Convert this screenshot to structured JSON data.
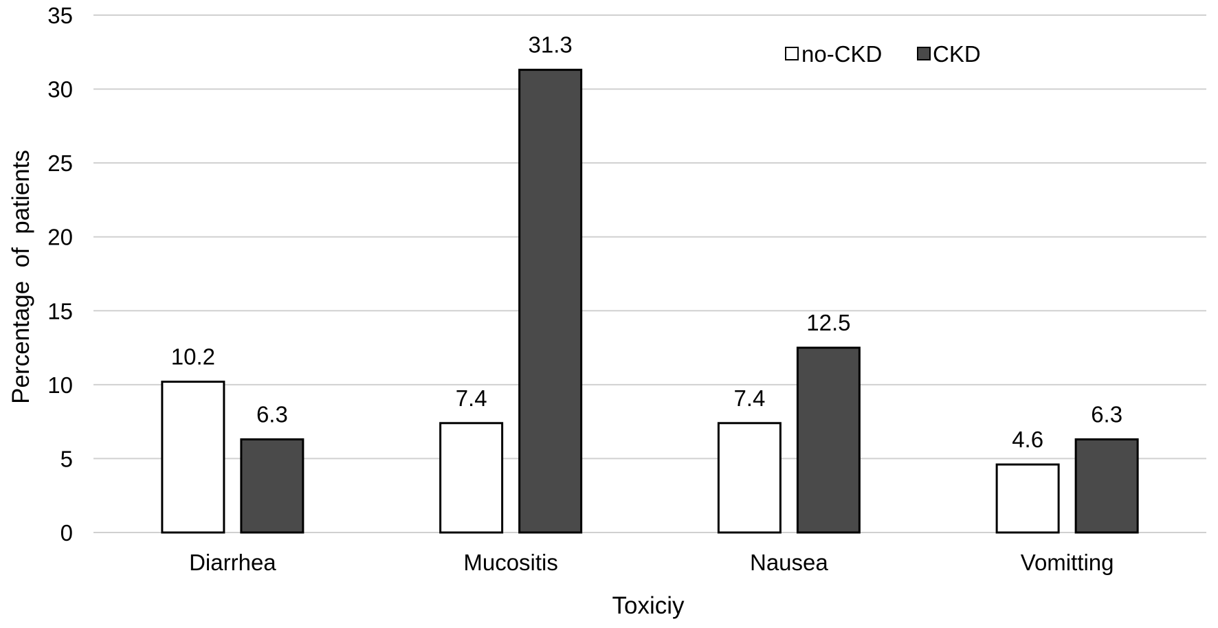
{
  "chart_data": {
    "type": "bar",
    "xlabel": "Toxiciy",
    "ylabel": "Percentage  of  patients",
    "categories": [
      "Diarrhea",
      "Mucositis",
      "Nausea",
      "Vomitting"
    ],
    "series": [
      {
        "name": "no-CKD",
        "values": [
          10.2,
          7.4,
          7.4,
          4.6
        ],
        "color": "#ffffff"
      },
      {
        "name": "CKD",
        "values": [
          6.3,
          31.3,
          12.5,
          6.3
        ],
        "color": "#4a4a4a"
      }
    ],
    "ylim": [
      0,
      35
    ],
    "yticks": [
      0,
      5,
      10,
      15,
      20,
      25,
      30,
      35
    ],
    "grid": true,
    "legend": "top-right",
    "data_labels": true
  }
}
